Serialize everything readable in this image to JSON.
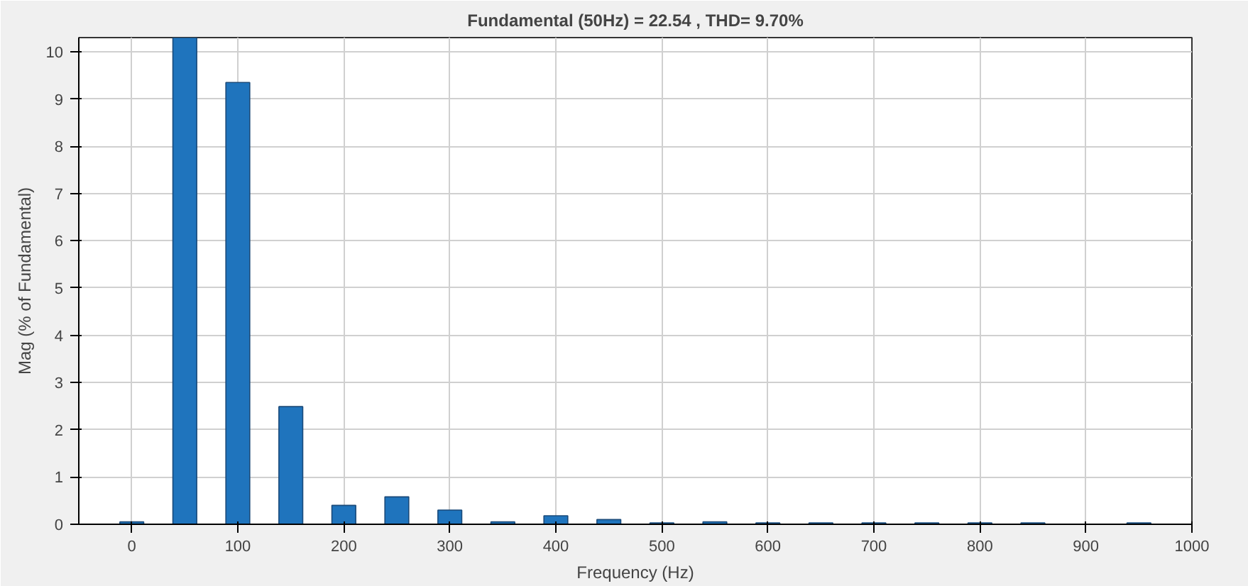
{
  "chart_data": {
    "type": "bar",
    "title": "Fundamental (50Hz) = 22.54 , THD= 9.70%",
    "xlabel": "Frequency (Hz)",
    "ylabel": "Mag (% of Fundamental)",
    "x": [
      0,
      50,
      100,
      150,
      200,
      250,
      300,
      350,
      400,
      450,
      500,
      550,
      600,
      650,
      700,
      750,
      800,
      850,
      900,
      950
    ],
    "values": [
      0.05,
      10.3,
      9.35,
      2.49,
      0.4,
      0.58,
      0.3,
      0.05,
      0.18,
      0.1,
      0.03,
      0.05,
      0.03,
      0.03,
      0.03,
      0.03,
      0.03,
      0.03,
      null,
      0.03
    ],
    "color": "#1f74bd",
    "xlim": [
      -50,
      1000
    ],
    "ylim": [
      0,
      10.3
    ],
    "xticks": [
      0,
      100,
      200,
      300,
      400,
      500,
      600,
      700,
      800,
      900,
      1000
    ],
    "yticks": [
      0,
      1,
      2,
      3,
      4,
      5,
      6,
      7,
      8,
      9,
      10
    ],
    "grid": true
  }
}
